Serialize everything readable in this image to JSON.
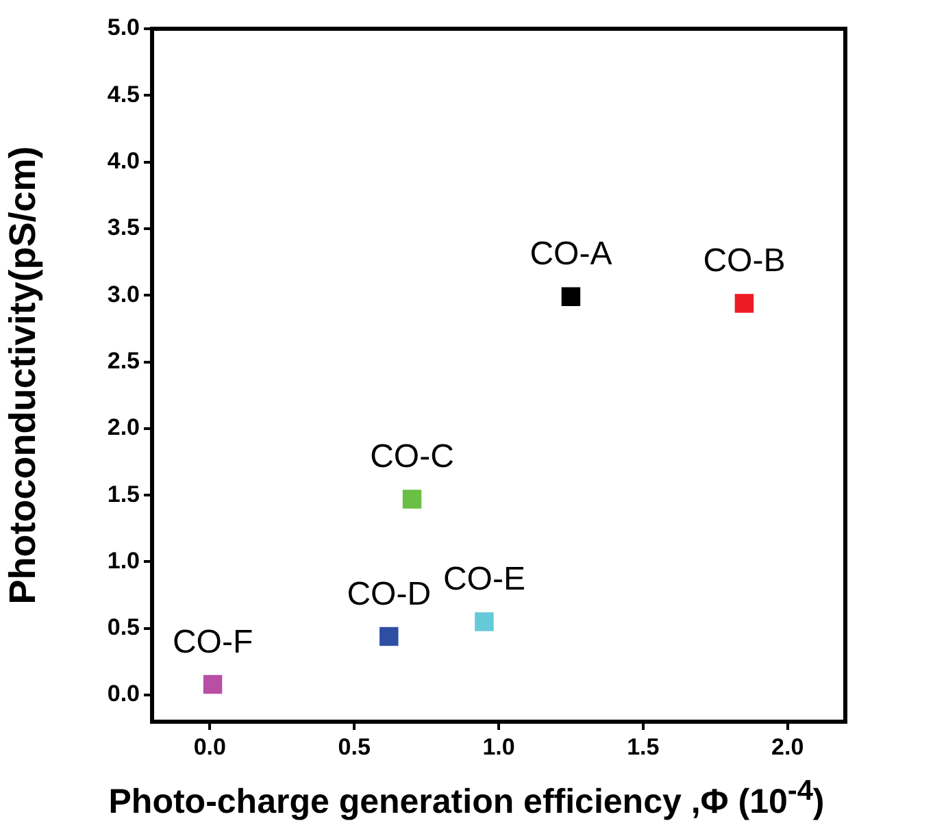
{
  "chart_data": {
    "type": "scatter",
    "xlabel": "Photo-charge generation efficiency ,Φ (10$^{-4}$)",
    "ylabel": "Photoconductivity(pS/cm)",
    "xlim": [
      -0.2,
      2.2
    ],
    "xticks": [
      {
        "value": 0,
        "label": "0.0"
      },
      0.5,
      {
        "value": 1,
        "label": "1.0"
      },
      1.5,
      {
        "value": 2,
        "label": "2.0"
      }
    ],
    "ylim": [
      -0.2,
      5.0
    ],
    "yticks": [
      {
        "value": 0,
        "label": "0.0"
      },
      0.5,
      {
        "value": 1,
        "label": "1.0"
      },
      1.5,
      {
        "value": 2,
        "label": "2.0"
      },
      2.5,
      {
        "value": 3,
        "label": "3.0"
      },
      3.5,
      {
        "value": 4,
        "label": "4.0"
      },
      4.5,
      {
        "value": 5,
        "label": "5.0"
      }
    ],
    "marker": "square",
    "grid": false,
    "legend": false,
    "series": [
      {
        "name": "CO-A",
        "color": "#000000",
        "x": [
          1.25
        ],
        "values": [
          2.99
        ]
      },
      {
        "name": "CO-B",
        "color": "#ed1c24",
        "x": [
          1.85
        ],
        "values": [
          2.94
        ]
      },
      {
        "name": "CO-C",
        "color": "#6abf45",
        "x": [
          0.7
        ],
        "values": [
          1.47
        ]
      },
      {
        "name": "CO-D",
        "color": "#2e4ea3",
        "x": [
          0.62
        ],
        "values": [
          0.44
        ]
      },
      {
        "name": "CO-E",
        "color": "#66c9d9",
        "x": [
          0.95
        ],
        "values": [
          0.55
        ]
      },
      {
        "name": "CO-F",
        "color": "#b84fa5",
        "x": [
          0.01
        ],
        "values": [
          0.08
        ]
      }
    ]
  }
}
